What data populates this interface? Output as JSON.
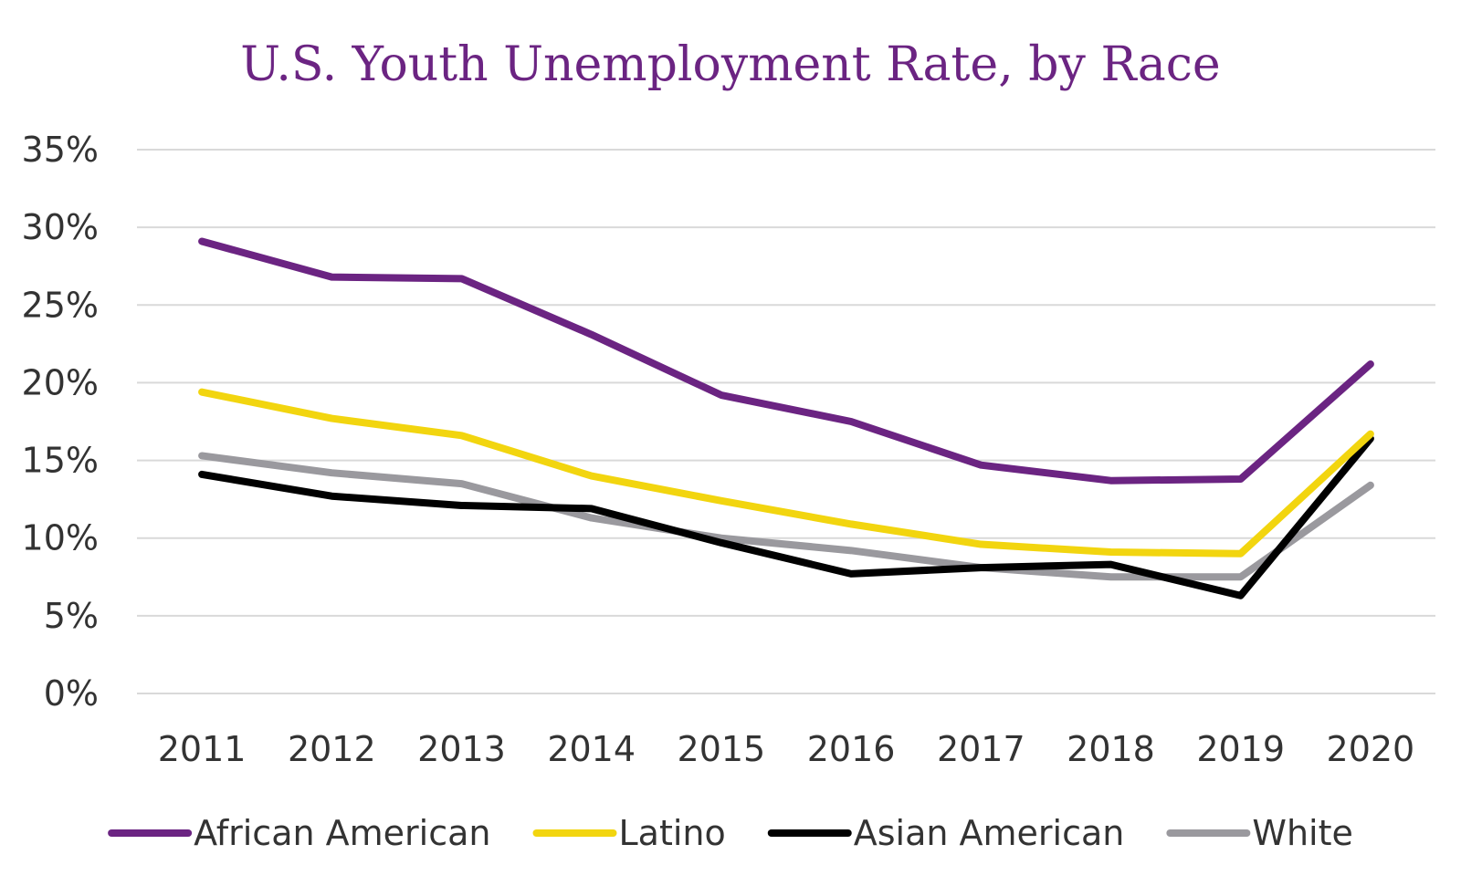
{
  "chart_data": {
    "type": "line",
    "title": "U.S. Youth Unemployment Rate, by Race",
    "xlabel": "",
    "ylabel": "",
    "categories": [
      "2011",
      "2012",
      "2013",
      "2014",
      "2015",
      "2016",
      "2017",
      "2018",
      "2019",
      "2020"
    ],
    "ylim": [
      0,
      35
    ],
    "yticks": [
      0,
      5,
      10,
      15,
      20,
      25,
      30,
      35
    ],
    "ytick_labels": [
      "0%",
      "5%",
      "10%",
      "15%",
      "20%",
      "25%",
      "30%",
      "35%"
    ],
    "grid": true,
    "legend_position": "bottom",
    "series": [
      {
        "name": "African American",
        "color": "#6b2482",
        "values": [
          29.1,
          26.8,
          26.7,
          23.1,
          19.2,
          17.5,
          14.7,
          13.7,
          13.8,
          21.2
        ]
      },
      {
        "name": "Latino",
        "color": "#f2d50f",
        "values": [
          19.4,
          17.7,
          16.6,
          14.0,
          12.4,
          10.9,
          9.6,
          9.1,
          9.0,
          16.7
        ]
      },
      {
        "name": "Asian American",
        "color": "#000000",
        "values": [
          14.1,
          12.7,
          12.1,
          11.9,
          9.7,
          7.7,
          8.1,
          8.3,
          6.3,
          16.4
        ]
      },
      {
        "name": "White",
        "color": "#9a999e",
        "values": [
          15.3,
          14.2,
          13.5,
          11.3,
          10.0,
          9.2,
          8.1,
          7.5,
          7.5,
          13.4
        ]
      }
    ],
    "colors": {
      "title": "#6b2482",
      "tick_text": "#333333",
      "grid": "#d9d9d9"
    }
  }
}
